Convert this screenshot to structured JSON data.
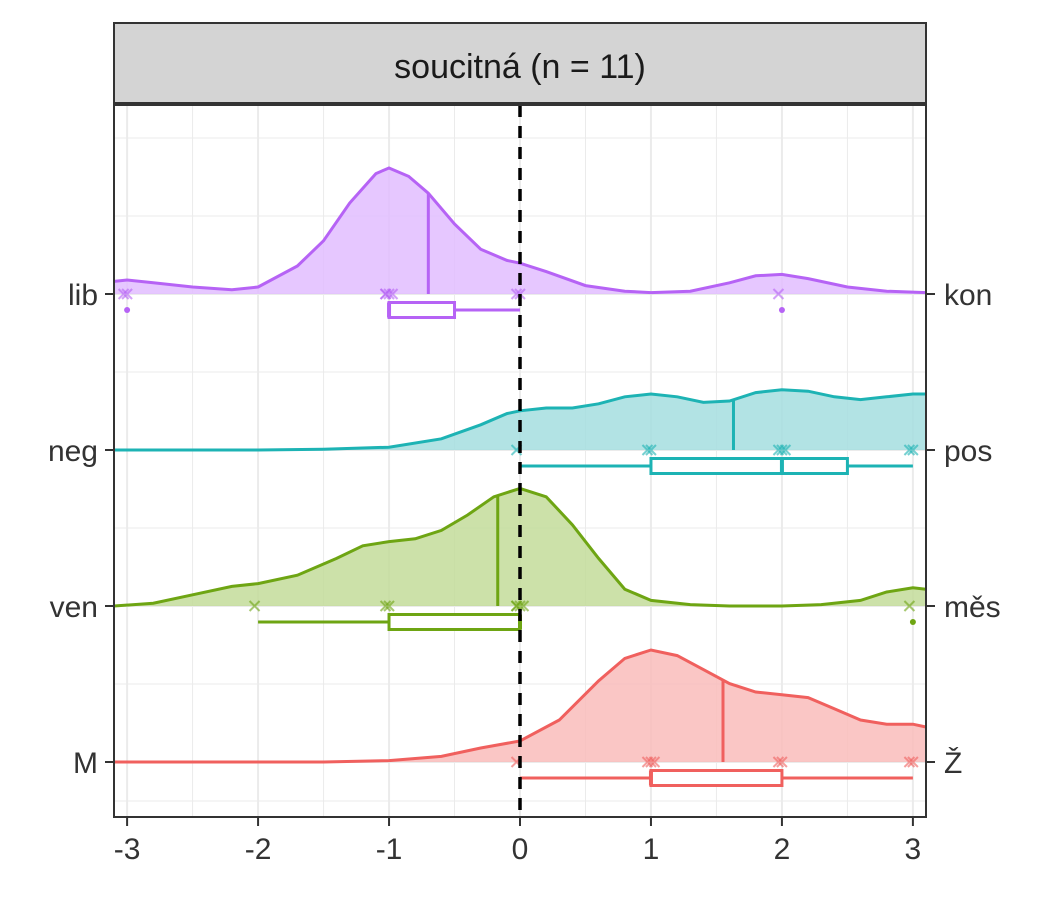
{
  "panel": {
    "strip_title": "soucitná (n = 11)"
  },
  "chart_data": {
    "type": "ridgeline-density-boxplot",
    "title": "",
    "xlabel": "",
    "ylabel": "",
    "xlim": [
      -3.1,
      3.1
    ],
    "x_ticks": [
      "-3",
      "-2",
      "-1",
      "0",
      "1",
      "2",
      "3"
    ],
    "x_tick_values": [
      -3,
      -2,
      -1,
      0,
      1,
      2,
      3
    ],
    "reference_line_x": 0,
    "grid": true,
    "series": [
      {
        "left_label": "lib",
        "right_label": "kon",
        "color": "#B663F5",
        "fill": "#E2BDFF",
        "points": [
          -3,
          -3,
          -1,
          -1,
          -1,
          -1,
          0,
          0,
          2
        ],
        "median_line": -0.7,
        "box": {
          "q1": -1,
          "median": -1,
          "q3": -0.5,
          "whisker_low": -1,
          "whisker_high": 0
        },
        "outliers": [
          -3,
          2
        ],
        "density": [
          [
            -3.1,
            0.09
          ],
          [
            -3.0,
            0.1
          ],
          [
            -2.8,
            0.08
          ],
          [
            -2.5,
            0.05
          ],
          [
            -2.2,
            0.03
          ],
          [
            -2.0,
            0.05
          ],
          [
            -1.7,
            0.2
          ],
          [
            -1.5,
            0.38
          ],
          [
            -1.3,
            0.65
          ],
          [
            -1.1,
            0.86
          ],
          [
            -1.0,
            0.9
          ],
          [
            -0.85,
            0.84
          ],
          [
            -0.7,
            0.72
          ],
          [
            -0.5,
            0.5
          ],
          [
            -0.3,
            0.32
          ],
          [
            -0.1,
            0.24
          ],
          [
            0,
            0.22
          ],
          [
            0.2,
            0.16
          ],
          [
            0.5,
            0.06
          ],
          [
            0.8,
            0.02
          ],
          [
            1.0,
            0.01
          ],
          [
            1.3,
            0.02
          ],
          [
            1.6,
            0.08
          ],
          [
            1.8,
            0.13
          ],
          [
            2.0,
            0.14
          ],
          [
            2.2,
            0.11
          ],
          [
            2.5,
            0.05
          ],
          [
            2.8,
            0.02
          ],
          [
            3.1,
            0.01
          ]
        ]
      },
      {
        "left_label": "neg",
        "right_label": "pos",
        "color": "#1DB3B4",
        "fill": "#A4DEDF",
        "points": [
          0,
          1,
          1,
          2,
          2,
          2,
          3,
          3
        ],
        "median_line": 1.63,
        "box": {
          "q1": 1,
          "median": 2,
          "q3": 2.5,
          "whisker_low": 0,
          "whisker_high": 3
        },
        "outliers": [],
        "density": [
          [
            -3.1,
            0.0
          ],
          [
            -2.0,
            0.0
          ],
          [
            -1.5,
            0.005
          ],
          [
            -1.0,
            0.02
          ],
          [
            -0.6,
            0.08
          ],
          [
            -0.3,
            0.18
          ],
          [
            -0.1,
            0.26
          ],
          [
            0,
            0.28
          ],
          [
            0.2,
            0.3
          ],
          [
            0.4,
            0.3
          ],
          [
            0.6,
            0.33
          ],
          [
            0.8,
            0.38
          ],
          [
            1.0,
            0.4
          ],
          [
            1.2,
            0.38
          ],
          [
            1.4,
            0.34
          ],
          [
            1.6,
            0.35
          ],
          [
            1.8,
            0.41
          ],
          [
            2.0,
            0.43
          ],
          [
            2.2,
            0.42
          ],
          [
            2.4,
            0.38
          ],
          [
            2.6,
            0.36
          ],
          [
            2.8,
            0.38
          ],
          [
            3.0,
            0.4
          ],
          [
            3.1,
            0.4
          ]
        ]
      },
      {
        "left_label": "ven",
        "right_label": "měs",
        "color": "#6EA513",
        "fill": "#C3DC9A",
        "points": [
          -2,
          -1,
          -1,
          0,
          0,
          0,
          0,
          3
        ],
        "median_line": -0.17,
        "box": {
          "q1": -1,
          "median": 0,
          "q3": 0,
          "whisker_low": -2,
          "whisker_high": 0
        },
        "outliers": [
          3
        ],
        "density": [
          [
            -3.1,
            0.0
          ],
          [
            -2.8,
            0.02
          ],
          [
            -2.5,
            0.08
          ],
          [
            -2.2,
            0.14
          ],
          [
            -2.0,
            0.16
          ],
          [
            -1.7,
            0.22
          ],
          [
            -1.4,
            0.34
          ],
          [
            -1.2,
            0.43
          ],
          [
            -1.0,
            0.46
          ],
          [
            -0.8,
            0.48
          ],
          [
            -0.6,
            0.54
          ],
          [
            -0.4,
            0.65
          ],
          [
            -0.2,
            0.78
          ],
          [
            0,
            0.84
          ],
          [
            0.2,
            0.78
          ],
          [
            0.4,
            0.58
          ],
          [
            0.6,
            0.34
          ],
          [
            0.8,
            0.12
          ],
          [
            1.0,
            0.04
          ],
          [
            1.3,
            0.01
          ],
          [
            1.6,
            0.0
          ],
          [
            2.0,
            0.0
          ],
          [
            2.3,
            0.01
          ],
          [
            2.6,
            0.04
          ],
          [
            2.8,
            0.1
          ],
          [
            3.0,
            0.13
          ],
          [
            3.1,
            0.12
          ]
        ]
      },
      {
        "left_label": "M",
        "right_label": "Ž",
        "color": "#F0605E",
        "fill": "#F9BCBB",
        "points": [
          0,
          1,
          1,
          1,
          2,
          2,
          3,
          3
        ],
        "median_line": 1.55,
        "box": {
          "q1": 1,
          "median": 1,
          "q3": 2,
          "whisker_low": 0,
          "whisker_high": 3
        },
        "outliers": [],
        "density": [
          [
            -3.1,
            0.0
          ],
          [
            -2.0,
            0.0
          ],
          [
            -1.5,
            0.0
          ],
          [
            -1.0,
            0.01
          ],
          [
            -0.6,
            0.04
          ],
          [
            -0.3,
            0.1
          ],
          [
            0,
            0.15
          ],
          [
            0.3,
            0.3
          ],
          [
            0.6,
            0.58
          ],
          [
            0.8,
            0.74
          ],
          [
            1.0,
            0.8
          ],
          [
            1.2,
            0.76
          ],
          [
            1.4,
            0.66
          ],
          [
            1.6,
            0.56
          ],
          [
            1.8,
            0.5
          ],
          [
            2.0,
            0.48
          ],
          [
            2.2,
            0.46
          ],
          [
            2.4,
            0.38
          ],
          [
            2.6,
            0.3
          ],
          [
            2.8,
            0.27
          ],
          [
            3.0,
            0.27
          ],
          [
            3.1,
            0.25
          ]
        ]
      }
    ]
  }
}
